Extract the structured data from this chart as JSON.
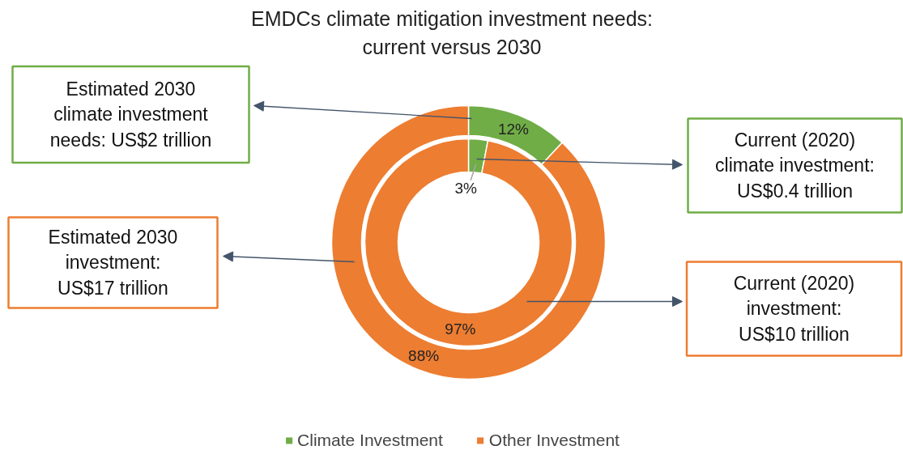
{
  "chart_data": {
    "type": "donut",
    "title": "EMDCs climate mitigation investment needs:\ncurrent versus 2030",
    "categories": [
      "Climate Investment",
      "Other Investment"
    ],
    "colors": [
      "#70ad47",
      "#ed7d31"
    ],
    "series": [
      {
        "values": [
          3,
          97
        ],
        "value_labels": [
          "3%",
          "97%"
        ]
      },
      {
        "values": [
          12,
          88
        ],
        "value_labels": [
          "12%",
          "88%"
        ]
      }
    ],
    "legend": "bottom",
    "annotations": [
      "Estimated 2030\nclimate investment\nneeds: US$2 trillion",
      "Current (2020)\nclimate investment:\nUS$0.4 trillion",
      "Estimated 2030\ninvestment:\nUS$17 trillion",
      "Current (2020)\ninvestment:\nUS$10 trillion"
    ]
  }
}
